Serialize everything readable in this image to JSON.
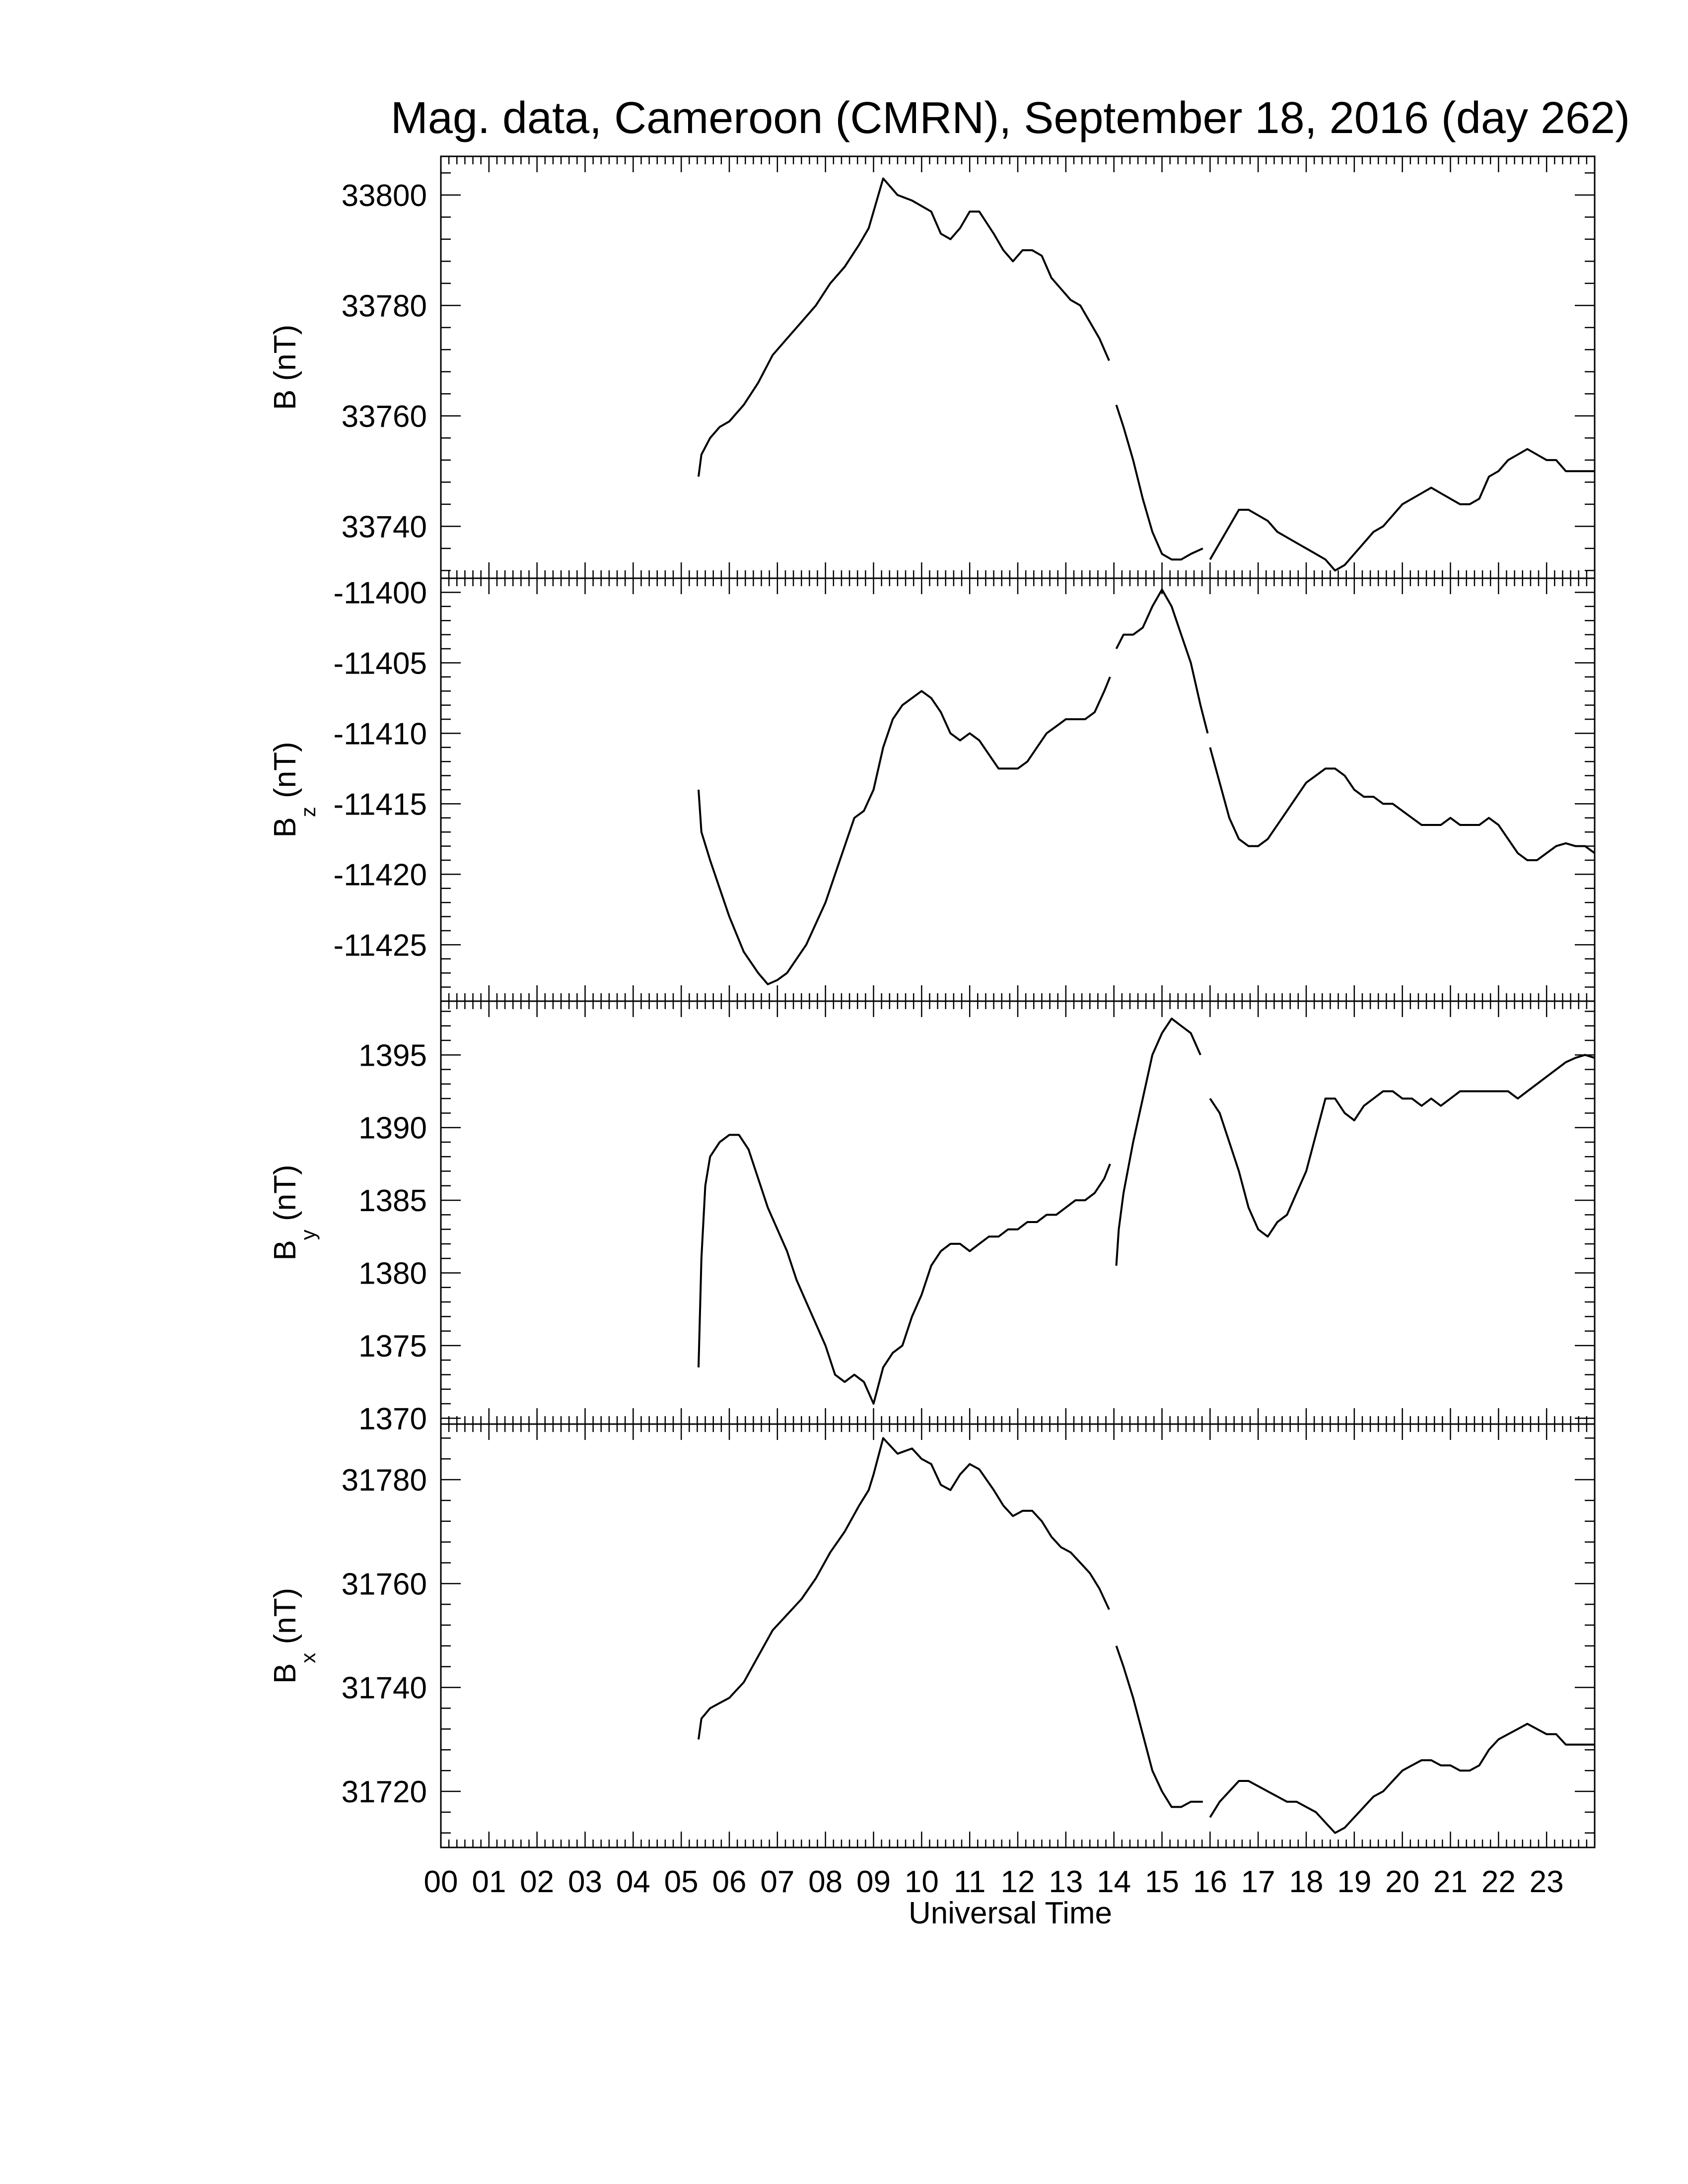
{
  "title": "Mag. data, Cameroon (CMRN), September 18, 2016 (day 262)",
  "xlabel": "Universal Time",
  "line_color": "#000000",
  "chart_data": [
    {
      "type": "line",
      "ylabel": "B (nT)",
      "ylim": [
        33730.6,
        33807
      ],
      "yticks": [
        33740,
        33760,
        33780,
        33800
      ],
      "xlim": [
        0,
        24
      ],
      "series": [
        {
          "x": [
            5.36,
            5.42,
            5.6,
            5.8,
            6.0,
            6.3,
            6.6,
            6.9,
            7.2,
            7.5,
            7.8,
            8.1,
            8.4,
            8.7,
            8.9,
            9.0,
            9.2,
            9.5,
            9.8,
            10.0,
            10.2,
            10.4,
            10.6,
            10.8,
            11.0,
            11.2,
            11.5,
            11.7,
            11.9,
            12.1,
            12.3,
            12.5,
            12.7,
            12.9,
            13.1,
            13.3,
            13.5,
            13.7,
            13.9
          ],
          "y": [
            33749,
            33753,
            33756,
            33758,
            33759,
            33762,
            33766,
            33771,
            33774,
            33777,
            33780,
            33784,
            33787,
            33791,
            33794,
            33797,
            33803,
            33800,
            33799,
            33798,
            33797,
            33793,
            33792,
            33794,
            33797,
            33797,
            33793,
            33790,
            33788,
            33790,
            33790,
            33789,
            33785,
            33783,
            33781,
            33780,
            33777,
            33774,
            33770
          ]
        },
        {
          "x": [
            14.05,
            14.2,
            14.4,
            14.6,
            14.8,
            15.0,
            15.2,
            15.4,
            15.6,
            15.85
          ],
          "y": [
            33762,
            33758,
            33752,
            33745,
            33739,
            33735,
            33734,
            33734,
            33735,
            33736
          ]
        },
        {
          "x": [
            16.0,
            16.2,
            16.4,
            16.6,
            16.8,
            17.0,
            17.2,
            17.4,
            17.6,
            17.8,
            18.0,
            18.2,
            18.4,
            18.6,
            18.8,
            19.0,
            19.2,
            19.4,
            19.6,
            19.8,
            20.0,
            20.2,
            20.4,
            20.6,
            20.8,
            21.0,
            21.2,
            21.4,
            21.6,
            21.8,
            22.0,
            22.2,
            22.4,
            22.6,
            22.8,
            23.0,
            23.2,
            23.4,
            23.6,
            23.8,
            24.0
          ],
          "y": [
            33734,
            33737,
            33740,
            33743,
            33743,
            33742,
            33741,
            33739,
            33738,
            33737,
            33736,
            33735,
            33734,
            33732,
            33733,
            33735,
            33737,
            33739,
            33740,
            33742,
            33744,
            33745,
            33746,
            33747,
            33746,
            33745,
            33744,
            33744,
            33745,
            33749,
            33750,
            33752,
            33753,
            33754,
            33753,
            33752,
            33752,
            33750,
            33750,
            33750,
            33750
          ]
        }
      ]
    },
    {
      "type": "line",
      "ylabel": "B_z (nT)",
      "ylabel_main": "B",
      "ylabel_sub": "z",
      "ylabel_tail": " (nT)",
      "ylim": [
        -11429,
        -11399
      ],
      "yticks": [
        -11425,
        -11420,
        -11415,
        -11410,
        -11405,
        -11400
      ],
      "xlim": [
        0,
        24
      ],
      "series": [
        {
          "x": [
            5.36,
            5.42,
            5.6,
            5.8,
            6.0,
            6.3,
            6.6,
            6.8,
            7.0,
            7.2,
            7.4,
            7.6,
            7.8,
            8.0,
            8.2,
            8.4,
            8.6,
            8.8,
            9.0,
            9.2,
            9.4,
            9.6,
            9.8,
            10.0,
            10.2,
            10.4,
            10.6,
            10.8,
            11.0,
            11.2,
            11.4,
            11.6,
            11.8,
            12.0,
            12.2,
            12.4,
            12.6,
            12.8,
            13.0,
            13.2,
            13.4,
            13.6,
            13.8,
            13.92
          ],
          "y": [
            -11414,
            -11417,
            -11419,
            -11421,
            -11423,
            -11425.5,
            -11427,
            -11427.8,
            -11427.5,
            -11427,
            -11426,
            -11425,
            -11423.5,
            -11422,
            -11420,
            -11418,
            -11416,
            -11415.5,
            -11414,
            -11411,
            -11409,
            -11408,
            -11407.5,
            -11407,
            -11407.5,
            -11408.5,
            -11410,
            -11410.5,
            -11410,
            -11410.5,
            -11411.5,
            -11412.5,
            -11412.5,
            -11412.5,
            -11412,
            -11411,
            -11410,
            -11409.5,
            -11409,
            -11409,
            -11409,
            -11408.5,
            -11407,
            -11406
          ]
        },
        {
          "x": [
            14.05,
            14.2,
            14.4,
            14.6,
            14.8,
            15.0,
            15.2,
            15.4,
            15.6,
            15.8,
            15.95
          ],
          "y": [
            -11404,
            -11403,
            -11403,
            -11402.5,
            -11401,
            -11399.8,
            -11401,
            -11403,
            -11405,
            -11408,
            -11410
          ]
        },
        {
          "x": [
            16.0,
            16.2,
            16.4,
            16.6,
            16.8,
            17.0,
            17.2,
            17.4,
            17.6,
            17.8,
            18.0,
            18.2,
            18.4,
            18.6,
            18.8,
            19.0,
            19.2,
            19.4,
            19.6,
            19.8,
            20.0,
            20.2,
            20.4,
            20.6,
            20.8,
            21.0,
            21.2,
            21.4,
            21.6,
            21.8,
            22.0,
            22.2,
            22.4,
            22.6,
            22.8,
            23.0,
            23.2,
            23.4,
            23.6,
            23.8,
            24.0
          ],
          "y": [
            -11411,
            -11413.5,
            -11416,
            -11417.5,
            -11418,
            -11418,
            -11417.5,
            -11416.5,
            -11415.5,
            -11414.5,
            -11413.5,
            -11413,
            -11412.5,
            -11412.5,
            -11413,
            -11414,
            -11414.5,
            -11414.5,
            -11415,
            -11415,
            -11415.5,
            -11416,
            -11416.5,
            -11416.5,
            -11416.5,
            -11416,
            -11416.5,
            -11416.5,
            -11416.5,
            -11416,
            -11416.5,
            -11417.5,
            -11418.5,
            -11419,
            -11419,
            -11418.5,
            -11418,
            -11417.8,
            -11418,
            -11418,
            -11418.5
          ]
        }
      ]
    },
    {
      "type": "line",
      "ylabel": "B_y (nT)",
      "ylabel_main": "B",
      "ylabel_sub": "y",
      "ylabel_tail": " (nT)",
      "ylim": [
        1369.6,
        1398.7
      ],
      "yticks": [
        1370,
        1375,
        1380,
        1385,
        1390,
        1395
      ],
      "xlim": [
        0,
        24
      ],
      "series": [
        {
          "x": [
            5.36,
            5.42,
            5.5,
            5.6,
            5.8,
            6.0,
            6.2,
            6.4,
            6.6,
            6.8,
            7.0,
            7.2,
            7.4,
            7.6,
            7.8,
            8.0,
            8.2,
            8.4,
            8.6,
            8.8,
            9.0,
            9.2,
            9.4,
            9.6,
            9.8,
            10.0,
            10.2,
            10.4,
            10.6,
            10.8,
            11.0,
            11.2,
            11.4,
            11.6,
            11.8,
            12.0,
            12.2,
            12.4,
            12.6,
            12.8,
            13.0,
            13.2,
            13.4,
            13.6,
            13.8,
            13.92
          ],
          "y": [
            1373.5,
            1381,
            1386,
            1388,
            1389,
            1389.5,
            1389.5,
            1388.5,
            1386.5,
            1384.5,
            1383,
            1381.5,
            1379.5,
            1378,
            1376.5,
            1375,
            1373,
            1372.5,
            1373,
            1372.5,
            1371,
            1373.5,
            1374.5,
            1375,
            1377,
            1378.5,
            1380.5,
            1381.5,
            1382,
            1382,
            1381.5,
            1382,
            1382.5,
            1382.5,
            1383,
            1383,
            1383.5,
            1383.5,
            1384,
            1384,
            1384.5,
            1385,
            1385,
            1385.5,
            1386.5,
            1387.5
          ]
        },
        {
          "x": [
            14.05,
            14.1,
            14.2,
            14.4,
            14.6,
            14.8,
            15.0,
            15.2,
            15.4,
            15.6,
            15.8
          ],
          "y": [
            1380.5,
            1383,
            1385.5,
            1389,
            1392,
            1395,
            1396.5,
            1397.5,
            1397,
            1396.5,
            1395
          ]
        },
        {
          "x": [
            16.0,
            16.2,
            16.4,
            16.6,
            16.8,
            17.0,
            17.2,
            17.4,
            17.6,
            17.8,
            18.0,
            18.2,
            18.4,
            18.6,
            18.8,
            19.0,
            19.2,
            19.4,
            19.6,
            19.8,
            20.0,
            20.2,
            20.4,
            20.6,
            20.8,
            21.0,
            21.2,
            21.4,
            21.6,
            21.8,
            22.0,
            22.2,
            22.4,
            22.6,
            22.8,
            23.0,
            23.2,
            23.4,
            23.6,
            23.8,
            24.0
          ],
          "y": [
            1392,
            1391,
            1389,
            1387,
            1384.5,
            1383,
            1382.5,
            1383.5,
            1384,
            1385.5,
            1387,
            1389.5,
            1392,
            1392,
            1391,
            1390.5,
            1391.5,
            1392,
            1392.5,
            1392.5,
            1392,
            1392,
            1391.5,
            1392,
            1391.5,
            1392,
            1392.5,
            1392.5,
            1392.5,
            1392.5,
            1392.5,
            1392.5,
            1392,
            1392.5,
            1393,
            1393.5,
            1394,
            1394.5,
            1394.8,
            1395,
            1394.8
          ]
        }
      ]
    },
    {
      "type": "line",
      "ylabel": "B_x (nT)",
      "ylabel_main": "B",
      "ylabel_sub": "x",
      "ylabel_tail": " (nT)",
      "ylim": [
        31709.2,
        31790.7
      ],
      "yticks": [
        31720,
        31740,
        31760,
        31780
      ],
      "xlim": [
        0,
        24
      ],
      "series": [
        {
          "x": [
            5.36,
            5.42,
            5.6,
            5.8,
            6.0,
            6.3,
            6.6,
            6.9,
            7.2,
            7.5,
            7.8,
            8.1,
            8.4,
            8.7,
            8.9,
            9.0,
            9.2,
            9.5,
            9.8,
            10.0,
            10.2,
            10.4,
            10.6,
            10.8,
            11.0,
            11.2,
            11.5,
            11.7,
            11.9,
            12.1,
            12.3,
            12.5,
            12.7,
            12.9,
            13.1,
            13.3,
            13.5,
            13.7,
            13.9
          ],
          "y": [
            31730,
            31734,
            31736,
            31737,
            31738,
            31741,
            31746,
            31751,
            31754,
            31757,
            31761,
            31766,
            31770,
            31775,
            31778,
            31781,
            31788,
            31785,
            31786,
            31784,
            31783,
            31779,
            31778,
            31781,
            31783,
            31782,
            31778,
            31775,
            31773,
            31774,
            31774,
            31772,
            31769,
            31767,
            31766,
            31764,
            31762,
            31759,
            31755
          ]
        },
        {
          "x": [
            14.05,
            14.2,
            14.4,
            14.6,
            14.8,
            15.0,
            15.2,
            15.4,
            15.6,
            15.85
          ],
          "y": [
            31748,
            31744,
            31738,
            31731,
            31724,
            31720,
            31717,
            31717,
            31718,
            31718
          ]
        },
        {
          "x": [
            16.0,
            16.2,
            16.4,
            16.6,
            16.8,
            17.0,
            17.2,
            17.4,
            17.6,
            17.8,
            18.0,
            18.2,
            18.4,
            18.6,
            18.8,
            19.0,
            19.2,
            19.4,
            19.6,
            19.8,
            20.0,
            20.2,
            20.4,
            20.6,
            20.8,
            21.0,
            21.2,
            21.4,
            21.6,
            21.8,
            22.0,
            22.2,
            22.4,
            22.6,
            22.8,
            23.0,
            23.2,
            23.4,
            23.6,
            23.8,
            24.0
          ],
          "y": [
            31715,
            31718,
            31720,
            31722,
            31722,
            31721,
            31720,
            31719,
            31718,
            31718,
            31717,
            31716,
            31714,
            31712,
            31713,
            31715,
            31717,
            31719,
            31720,
            31722,
            31724,
            31725,
            31726,
            31726,
            31725,
            31725,
            31724,
            31724,
            31725,
            31728,
            31730,
            31731,
            31732,
            31733,
            31732,
            31731,
            31731,
            31729,
            31729,
            31729,
            31729
          ]
        }
      ]
    }
  ],
  "xaxis": {
    "ticks": [
      "00",
      "01",
      "02",
      "03",
      "04",
      "05",
      "06",
      "07",
      "08",
      "09",
      "10",
      "11",
      "12",
      "13",
      "14",
      "15",
      "16",
      "17",
      "18",
      "19",
      "20",
      "21",
      "22",
      "23"
    ]
  }
}
